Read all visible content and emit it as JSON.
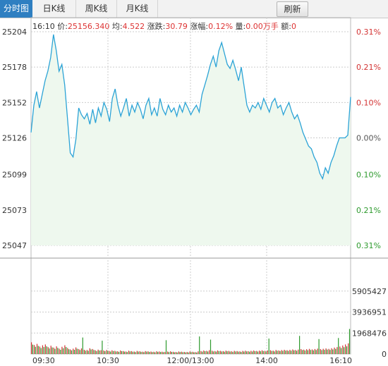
{
  "tabs": [
    {
      "label": "分时图",
      "active": true
    },
    {
      "label": "日K线",
      "active": false
    },
    {
      "label": "周K线",
      "active": false
    },
    {
      "label": "月K线",
      "active": false
    }
  ],
  "refresh_label": "刷新",
  "info": {
    "time": "16:10",
    "price_label": "价:",
    "price": "25156.340",
    "avg_label": "均:",
    "avg": "4.522",
    "change_label": "涨跌:",
    "change": "30.79",
    "pct_label": "涨幅:",
    "pct": "0.12%",
    "vol_label": "量:",
    "vol": "0.00万手",
    "amt_label": "额:",
    "amt": "0"
  },
  "colors": {
    "line": "#2ba3d6",
    "area": "#eef8ee",
    "up": "#d33333",
    "down": "#2d9a2d",
    "grid": "#cccccc",
    "tab_active": "#2f7fc1"
  },
  "chart_data": {
    "type": "area",
    "price_axis": {
      "ticks": [
        "25204",
        "25178",
        "25152",
        "25126",
        "25099",
        "25073",
        "25047"
      ],
      "values": [
        25204,
        25178,
        25152,
        25126,
        25099,
        25073,
        25047
      ]
    },
    "pct_axis": {
      "ticks": [
        "0.31%",
        "0.21%",
        "0.10%",
        "0.00%",
        "0.10%",
        "0.21%",
        "0.31%"
      ],
      "colors": [
        "up",
        "up",
        "up",
        "neutral",
        "down",
        "down",
        "down"
      ]
    },
    "volume_axis": {
      "ticks": [
        "5905427",
        "3936951",
        "1968476",
        "0"
      ],
      "max": 7874000
    },
    "time_ticks": [
      "09:30",
      "10:30",
      "12:00/13:00",
      "14:00",
      "16:10"
    ],
    "price_series": [
      25130,
      25150,
      25160,
      25148,
      25158,
      25168,
      25175,
      25185,
      25202,
      25190,
      25175,
      25180,
      25165,
      25140,
      25115,
      25112,
      25125,
      25148,
      25143,
      25140,
      25144,
      25136,
      25147,
      25137,
      25148,
      25142,
      25152,
      25147,
      25138,
      25155,
      25162,
      25150,
      25142,
      25148,
      25155,
      25142,
      25150,
      25145,
      25152,
      25147,
      25140,
      25150,
      25155,
      25143,
      25148,
      25142,
      25155,
      25147,
      25143,
      25150,
      25145,
      25148,
      25142,
      25150,
      25145,
      25152,
      25148,
      25143,
      25147,
      25150,
      25145,
      25158,
      25165,
      25172,
      25180,
      25186,
      25178,
      25190,
      25196,
      25188,
      25180,
      25177,
      25183,
      25176,
      25168,
      25178,
      25164,
      25150,
      25145,
      25150,
      25148,
      25152,
      25147,
      25155,
      25150,
      25145,
      25152,
      25155,
      25148,
      25150,
      25143,
      25148,
      25152,
      25145,
      25140,
      25143,
      25137,
      25130,
      25125,
      25120,
      25118,
      25112,
      25108,
      25100,
      25096,
      25104,
      25100,
      25108,
      25113,
      25120,
      25126,
      25126,
      25126,
      25128,
      25156
    ],
    "volume_series": [
      1100000,
      850000,
      950000,
      700000,
      820000,
      900000,
      650000,
      780000,
      600000,
      720000,
      500000,
      680000,
      820000,
      560000,
      430000,
      500000,
      620000,
      470000,
      520000,
      400000,
      380000,
      540000,
      470000,
      350000,
      410000,
      360000,
      330000,
      380000,
      290000,
      350000,
      300000,
      260000,
      330000,
      280000,
      240000,
      310000,
      270000,
      230000,
      290000,
      260000,
      220000,
      280000,
      250000,
      230000,
      210000,
      260000,
      240000,
      220000,
      200000,
      230000,
      250000,
      210000,
      190000,
      240000,
      220000,
      200000,
      190000,
      230000,
      210000,
      180000,
      250000,
      280000,
      330000,
      300000,
      360000,
      310000,
      280000,
      340000,
      300000,
      270000,
      320000,
      290000,
      260000,
      300000,
      280000,
      250000,
      290000,
      310000,
      270000,
      300000,
      330000,
      290000,
      320000,
      350000,
      300000,
      330000,
      360000,
      310000,
      380000,
      340000,
      370000,
      400000,
      360000,
      390000,
      430000,
      380000,
      420000,
      460000,
      410000,
      450000,
      480000,
      430000,
      470000,
      500000,
      460000,
      490000,
      520000,
      480000,
      540000,
      600000,
      650000,
      700000,
      800000,
      900000,
      1000000
    ],
    "volume_spikes": [
      {
        "index": 18,
        "value": 1550000
      },
      {
        "index": 25,
        "value": 1250000
      },
      {
        "index": 48,
        "value": 1300000
      },
      {
        "index": 60,
        "value": 1650000
      },
      {
        "index": 64,
        "value": 1350000
      },
      {
        "index": 85,
        "value": 1450000
      },
      {
        "index": 96,
        "value": 1700000
      },
      {
        "index": 103,
        "value": 1400000
      },
      {
        "index": 110,
        "value": 1500000
      },
      {
        "index": 114,
        "value": 2350000
      }
    ]
  }
}
